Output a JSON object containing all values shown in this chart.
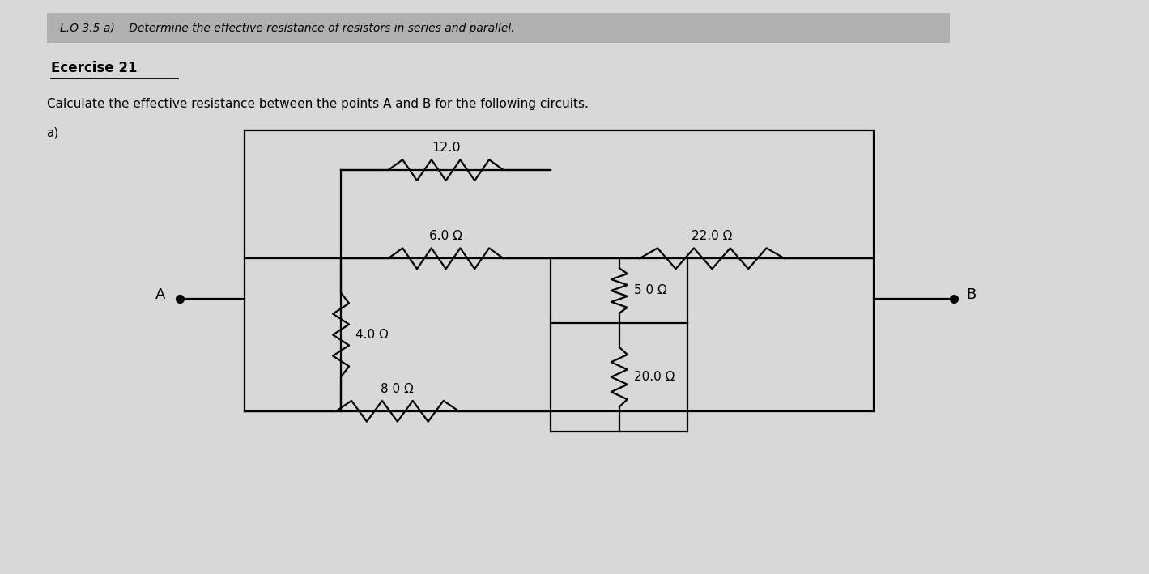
{
  "title_banner": "L.O 3.5 a)    Determine the effective resistance of resistors in series and parallel.",
  "exercise_label": "Ecercise 21",
  "problem_text": "Calculate the effective resistance between the points A and B for the following circuits.",
  "part_label": "a)",
  "bg_color": "#c8c8c8",
  "page_bg": "#d8d8d8",
  "banner_color": "#b0b0b0",
  "circuit": {
    "xA": 2.2,
    "xB": 11.8,
    "xL": 3.0,
    "xIL": 4.2,
    "xIM": 6.8,
    "xIR": 9.6,
    "xR": 10.8,
    "yTop": 5.5,
    "yITop": 5.0,
    "yMid": 3.9,
    "yIMid": 3.4,
    "yBot": 2.0,
    "yIBot": 1.55,
    "yA": 3.4,
    "xSL": 6.8,
    "xSR": 8.5,
    "ySTop": 3.1,
    "ySBot": 1.75
  },
  "labels": {
    "R12": "12.0",
    "R6": "6.0 Ω",
    "R22": "22.0 Ω",
    "R4": "4.0 Ω",
    "R5": "5 0 Ω",
    "R8": "8 0 Ω",
    "R20": "20.0 Ω"
  }
}
